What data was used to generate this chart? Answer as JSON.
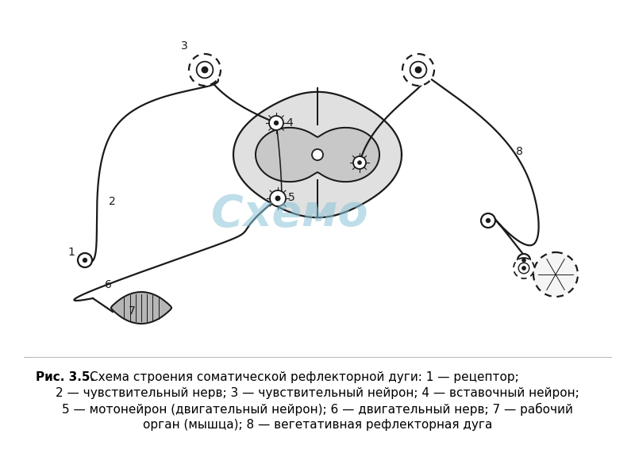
{
  "caption_bold": "Рис. 3.5.",
  "caption_line1": " Схема строения соматической рефлекторной дуги: 1 — рецептор;",
  "caption_line2": "2 — чувствительный нерв; 3 — чувствительный нейрон; 4 — вставочный нейрон;",
  "caption_line3": "5 — мотонейрон (двигательный нейрон); 6 — двигательный нерв; 7 — рабочий",
  "caption_line4": "орган (мышца); 8 — вегетативная рефлекторная дуга",
  "bg_color": "#ffffff",
  "lc": "#1a1a1a",
  "wm_color": "#89c4d8",
  "lw": 1.6
}
